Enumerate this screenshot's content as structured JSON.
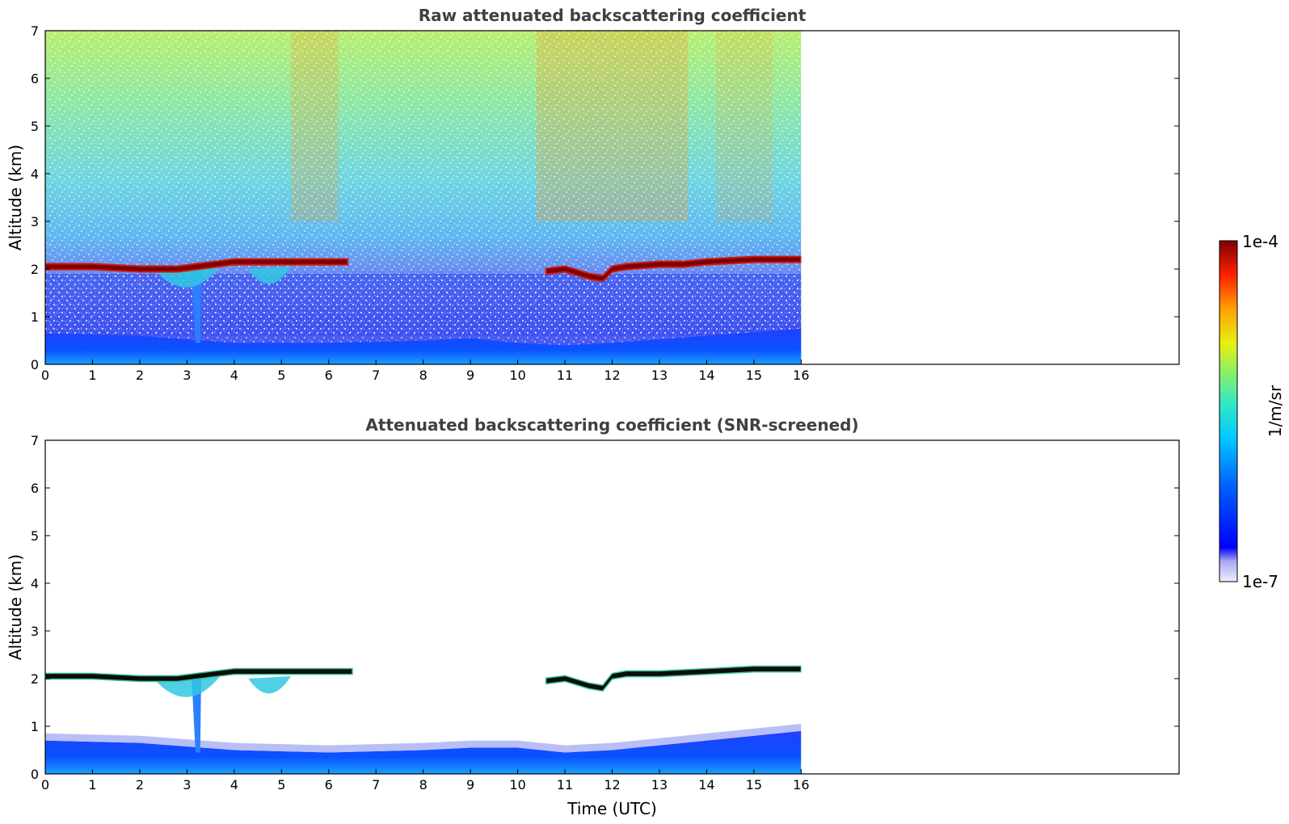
{
  "colors": {
    "cloud_dark": "#7f0000",
    "cloud_red": "#cc1a10",
    "boundary_blue": "#0a3cff",
    "screened_cloud_top": "#0b0b0b",
    "axes": "#000000",
    "title": "#404040"
  },
  "chart_data": [
    {
      "type": "heatmap",
      "title": "Raw attenuated backscattering coefficient",
      "xlabel": "",
      "ylabel": "Altitude (km)",
      "xlim": [
        0,
        24
      ],
      "ylim": [
        0,
        7
      ],
      "xticks": [
        "0",
        "1",
        "2",
        "3",
        "4",
        "5",
        "6",
        "7",
        "8",
        "9",
        "10",
        "11",
        "12",
        "13",
        "14",
        "15",
        "16"
      ],
      "yticks": [
        "0",
        "1",
        "2",
        "3",
        "4",
        "5",
        "6",
        "7"
      ],
      "data_extent_hours": [
        0,
        16
      ],
      "cloud_layer": {
        "time_h": [
          0,
          1,
          2,
          2.8,
          3.2,
          3.6,
          4,
          5,
          6,
          6.4
        ],
        "altitude_km": [
          2.05,
          2.05,
          2.0,
          2.0,
          2.05,
          2.1,
          2.15,
          2.15,
          2.15,
          2.15
        ]
      },
      "cloud_layer_2": {
        "time_h": [
          10.6,
          11,
          11.5,
          11.8,
          12,
          12.3,
          13,
          13.5,
          14,
          15,
          16
        ],
        "altitude_km": [
          1.95,
          2.0,
          1.85,
          1.8,
          2.0,
          2.05,
          2.1,
          2.1,
          2.15,
          2.2,
          2.2
        ]
      },
      "boundary_layer_top": {
        "time_h": [
          0,
          2,
          4,
          6,
          8,
          9,
          10,
          11,
          12,
          14,
          16
        ],
        "altitude_km": [
          0.65,
          0.6,
          0.45,
          0.45,
          0.5,
          0.55,
          0.45,
          0.4,
          0.45,
          0.6,
          0.75
        ]
      },
      "colorscale": [
        "#ffffff",
        "#b8b8f0",
        "#0000f0",
        "#0060ff",
        "#00b0ff",
        "#20e0e0",
        "#80f080",
        "#e0f020",
        "#ffb000",
        "#ff4000",
        "#d00000",
        "#800000"
      ]
    },
    {
      "type": "heatmap",
      "title": "Attenuated backscattering coefficient (SNR-screened)",
      "xlabel": "Time (UTC)",
      "ylabel": "Altitude (km)",
      "xlim": [
        0,
        24
      ],
      "ylim": [
        0,
        7
      ],
      "xticks": [
        "0",
        "1",
        "2",
        "3",
        "4",
        "5",
        "6",
        "7",
        "8",
        "9",
        "10",
        "11",
        "12",
        "13",
        "14",
        "15",
        "16"
      ],
      "yticks": [
        "0",
        "1",
        "2",
        "3",
        "4",
        "5",
        "6",
        "7"
      ],
      "data_extent_hours": [
        0,
        16
      ],
      "cloud_layer": {
        "time_h": [
          0,
          1,
          2,
          2.8,
          3.2,
          3.6,
          4,
          5,
          6,
          6.5
        ],
        "altitude_km": [
          2.05,
          2.05,
          2.0,
          2.0,
          2.05,
          2.1,
          2.15,
          2.15,
          2.15,
          2.15
        ]
      },
      "cloud_layer_2": {
        "time_h": [
          10.6,
          11,
          11.5,
          11.8,
          12,
          12.3,
          13,
          14,
          15,
          16
        ],
        "altitude_km": [
          1.95,
          2.0,
          1.85,
          1.8,
          2.05,
          2.1,
          2.1,
          2.15,
          2.2,
          2.2
        ]
      },
      "boundary_layer_top": {
        "time_h": [
          0,
          2,
          4,
          6,
          8,
          9,
          10,
          11,
          12,
          14,
          16
        ],
        "altitude_km": [
          0.7,
          0.65,
          0.5,
          0.45,
          0.5,
          0.55,
          0.55,
          0.45,
          0.5,
          0.7,
          0.9
        ]
      }
    }
  ],
  "colorbar": {
    "label": "1/m/sr",
    "max_label": "1e-4",
    "min_label": "1e-7",
    "scale": "log",
    "range": [
      "1e-7",
      "1e-4"
    ]
  }
}
